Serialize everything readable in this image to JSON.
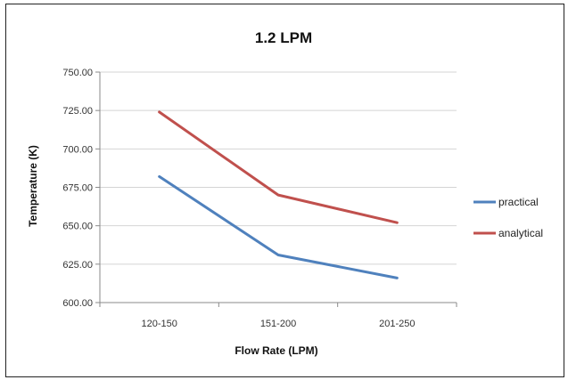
{
  "chart_data": {
    "type": "line",
    "title": "1.2 LPM",
    "xlabel": "Flow Rate (LPM)",
    "ylabel": "Temperature (K)",
    "categories": [
      "120-150",
      "151-200",
      "201-250"
    ],
    "ylim": [
      600,
      750
    ],
    "yticks": [
      "600.00",
      "625.00",
      "650.00",
      "675.00",
      "700.00",
      "725.00",
      "750.00"
    ],
    "ytick_values": [
      600,
      625,
      650,
      675,
      700,
      725,
      750
    ],
    "grid": true,
    "legend_position": "right",
    "series": [
      {
        "name": "practical",
        "values": [
          682,
          631,
          616
        ],
        "color": "#4F81BD"
      },
      {
        "name": "analytical",
        "values": [
          724,
          670,
          652
        ],
        "color": "#C0504D"
      }
    ]
  }
}
